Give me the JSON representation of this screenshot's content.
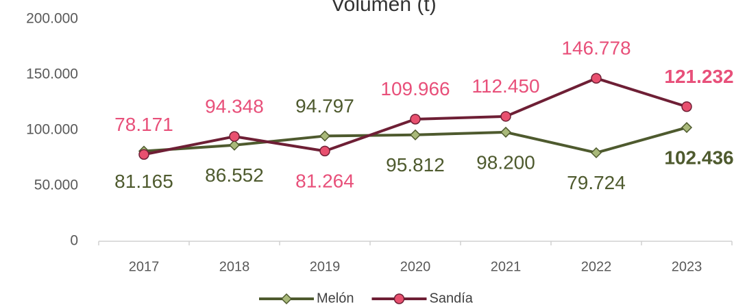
{
  "chart_data": {
    "type": "line",
    "title": "Volumen (t)",
    "categories": [
      "2017",
      "2018",
      "2019",
      "2020",
      "2021",
      "2022",
      "2023"
    ],
    "series": [
      {
        "name": "Melón",
        "color": "#4e5a2e",
        "marker_color": "#a9b97a",
        "label_color": "#4e5a2e",
        "marker": "diamond",
        "values": [
          81165,
          86552,
          94797,
          95812,
          98200,
          79724,
          102436
        ],
        "value_labels": [
          "81.165",
          "86.552",
          "94.797",
          "95.812",
          "98.200",
          "79.724",
          "102.436"
        ]
      },
      {
        "name": "Sandía",
        "color": "#6e1f35",
        "marker_color": "#e8506f",
        "label_color": "#e8507a",
        "marker": "circle",
        "values": [
          78171,
          94348,
          81264,
          109966,
          112450,
          146778,
          121232
        ],
        "value_labels": [
          "78.171",
          "94.348",
          "81.264",
          "109.966",
          "112.450",
          "146.778",
          "121.232"
        ]
      }
    ],
    "ylim": [
      0,
      200000
    ],
    "yticks": [
      0,
      {
        "value": 50000,
        "label": "50.000"
      },
      {
        "value": 100000,
        "label": "100.000"
      },
      {
        "value": 150000,
        "label": "150.000"
      },
      {
        "value": 200000,
        "label": "200.000"
      }
    ],
    "grid": false,
    "legend": "bottom"
  }
}
